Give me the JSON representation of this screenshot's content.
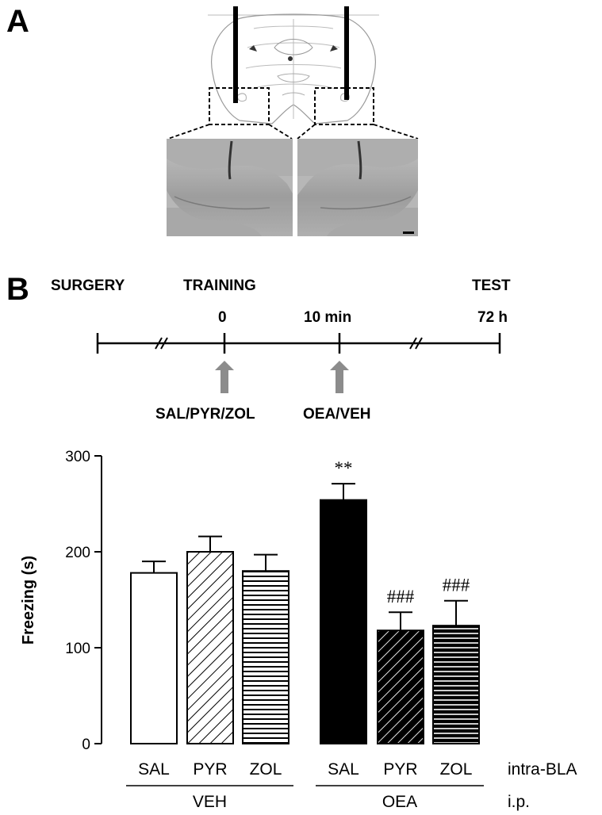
{
  "panel_a": {
    "letter": "A"
  },
  "panel_b": {
    "letter": "B",
    "timeline": {
      "phases": [
        "SURGERY",
        "TRAINING",
        "TEST"
      ],
      "times": [
        "0",
        "10 min",
        "72 h"
      ],
      "treatments": [
        "SAL/PYR/ZOL",
        "OEA/VEH"
      ]
    }
  },
  "chart_data": {
    "type": "bar",
    "ylabel": "Freezing (s)",
    "ylim": [
      0,
      300
    ],
    "yticks": [
      0,
      100,
      200,
      300
    ],
    "categories": [
      "SAL",
      "PYR",
      "ZOL",
      "SAL",
      "PYR",
      "ZOL"
    ],
    "values": [
      178,
      200,
      180,
      254,
      118,
      123
    ],
    "errors": [
      12,
      16,
      17,
      17,
      19,
      26
    ],
    "groups": [
      {
        "label": "VEH",
        "members": [
          0,
          1,
          2
        ]
      },
      {
        "label": "OEA",
        "members": [
          3,
          4,
          5
        ]
      }
    ],
    "fills": [
      "white",
      "diagonal-hatch",
      "horizontal-hatch",
      "black",
      "dark-diagonal-hatch",
      "dark-horizontal-hatch"
    ],
    "annotations": [
      "",
      "",
      "",
      "**",
      "###",
      "###"
    ],
    "row_labels": {
      "categories": "intra-BLA",
      "groups": "i.p."
    },
    "colors": {
      "bar_outline": "#000000",
      "dark_fill": "#000000",
      "arrow": "#8c8c8c"
    }
  }
}
